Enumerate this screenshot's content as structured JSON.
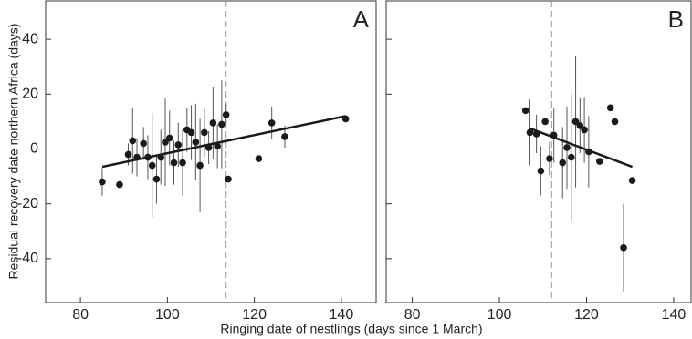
{
  "chart_data": [
    {
      "type": "scatter",
      "panel_label": "A",
      "ylabel": "Residual recovery date northern Africa (days)",
      "xlabel": "Ringing date of nestlings (days since 1 March)",
      "xlim": [
        72,
        148
      ],
      "ylim": [
        -56,
        54
      ],
      "xticks": [
        80,
        100,
        120,
        140
      ],
      "yticks": [
        -40,
        -20,
        0,
        20,
        40
      ],
      "color": "#1a1a1a",
      "reference_line_x": 113.5,
      "x": [
        85,
        89,
        91,
        92,
        93,
        94.5,
        95.5,
        96.5,
        97.5,
        98.5,
        99.5,
        100.5,
        101.5,
        102.5,
        103.5,
        104.5,
        105.5,
        106.5,
        107.5,
        108.5,
        109.5,
        110.5,
        111.5,
        112.5,
        113.5,
        114,
        121,
        124,
        127,
        141
      ],
      "values": [
        -12,
        -13,
        -2,
        3,
        -3,
        2,
        -3,
        -6,
        -11,
        -3,
        2.5,
        4,
        -5,
        1.5,
        -5,
        7,
        6,
        2.5,
        -6,
        6,
        0.5,
        9.5,
        1,
        9,
        12.5,
        -11,
        -3.5,
        9.5,
        4.5,
        11
      ],
      "errors": [
        5,
        null,
        4,
        12,
        7,
        6,
        8,
        19,
        9,
        10,
        16,
        10,
        8,
        8,
        12,
        8,
        10,
        14,
        17,
        9,
        6,
        13,
        8,
        16,
        4,
        null,
        null,
        6,
        4,
        null
      ],
      "fit": {
        "x": [
          85,
          141
        ],
        "y": [
          -6.5,
          12
        ]
      }
    },
    {
      "type": "scatter",
      "panel_label": "B",
      "xlim": [
        74,
        144
      ],
      "ylim": [
        -56,
        54
      ],
      "xticks": [
        80,
        100,
        120,
        140
      ],
      "yticks": [
        -40,
        -20,
        0,
        20,
        40
      ],
      "color": "#1a1a1a",
      "reference_line_x": 112,
      "x": [
        106,
        107,
        108.5,
        109.5,
        110.5,
        111.5,
        112.5,
        114.5,
        115.5,
        116.5,
        117.5,
        118.5,
        119.5,
        120.5,
        123,
        125.5,
        126.5,
        128.5,
        130.5
      ],
      "values": [
        14,
        6,
        5.5,
        -8,
        10,
        -3.5,
        5,
        -5,
        0.5,
        -3,
        10,
        8.5,
        7,
        -1,
        -4.5,
        15,
        10,
        -36,
        -11.5
      ],
      "errors": [
        null,
        12,
        7,
        9,
        null,
        6,
        10,
        13,
        15,
        23,
        24,
        10,
        12,
        13,
        null,
        null,
        null,
        16,
        null
      ],
      "fit": {
        "x": [
          107,
          130.5
        ],
        "y": [
          7.5,
          -6.5
        ]
      }
    }
  ]
}
